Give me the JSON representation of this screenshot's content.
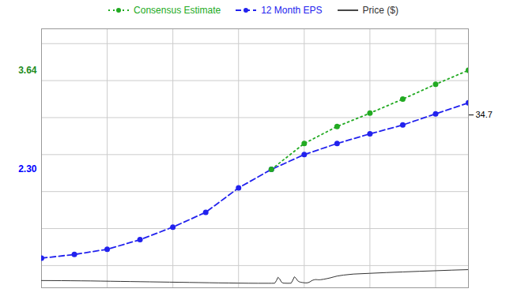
{
  "chart_data": {
    "type": "line",
    "legend": "top",
    "grid": true,
    "xlim": [
      0,
      13
    ],
    "ylim": [
      0.7,
      4.2
    ],
    "y2lim": [
      0.0,
      52.0
    ],
    "y2ticks": [
      34.7
    ],
    "series": [
      {
        "name": "Consensus Estimate",
        "color": "#22aa22",
        "line_style": "dotted",
        "marker": "circle",
        "x": [
          7,
          8,
          9,
          10,
          11,
          12,
          13
        ],
        "values": [
          2.3,
          2.65,
          2.88,
          3.06,
          3.25,
          3.45,
          3.64
        ]
      },
      {
        "name": "12 Month EPS",
        "color": "#2222ee",
        "line_style": "dashed",
        "marker": "circle",
        "x": [
          0,
          1,
          2,
          3,
          4,
          5,
          6,
          7,
          8,
          9,
          10,
          11,
          12,
          13
        ],
        "values": [
          1.1,
          1.15,
          1.22,
          1.35,
          1.52,
          1.72,
          2.05,
          2.3,
          2.5,
          2.65,
          2.78,
          2.9,
          3.05,
          3.2
        ]
      },
      {
        "name": "Price ($)",
        "color": "#333333",
        "line_style": "solid",
        "axis": "y2",
        "x": [
          0,
          0.3,
          0.6,
          0.9,
          1.2,
          1.5,
          1.8,
          2.1,
          2.4,
          2.7,
          3.0,
          3.3,
          3.6,
          3.9,
          4.2,
          4.5,
          4.8,
          5.1,
          5.4,
          5.7,
          6.0,
          6.3,
          6.6,
          6.9,
          7.0,
          7.1,
          7.15,
          7.2,
          7.25,
          7.3,
          7.35,
          7.4,
          7.45,
          7.5,
          7.55,
          7.6,
          7.65,
          7.7,
          7.75,
          7.8,
          7.85,
          7.9,
          7.95,
          8.0,
          8.05,
          8.1,
          8.15,
          8.2,
          8.25,
          8.3,
          8.35,
          8.4,
          8.45,
          8.5,
          8.6,
          8.7,
          8.8,
          8.9,
          9.0,
          9.2,
          9.5,
          10.0,
          10.5,
          11.0,
          11.5,
          12.0,
          12.5,
          13.0
        ],
        "values": [
          1.45,
          1.44,
          1.43,
          1.41,
          1.39,
          1.37,
          1.34,
          1.31,
          1.28,
          1.25,
          1.22,
          1.19,
          1.16,
          1.13,
          1.1,
          1.07,
          1.04,
          1.01,
          0.98,
          0.96,
          0.93,
          0.91,
          0.9,
          0.9,
          0.9,
          0.91,
          1.4,
          2.1,
          1.8,
          1.2,
          0.95,
          0.92,
          0.91,
          0.9,
          0.91,
          0.92,
          1.5,
          2.2,
          1.9,
          1.4,
          1.2,
          1.1,
          1.05,
          1.0,
          0.98,
          1.0,
          1.1,
          1.3,
          1.5,
          1.6,
          1.65,
          1.62,
          1.6,
          1.62,
          1.72,
          1.85,
          2.0,
          2.18,
          2.35,
          2.55,
          2.75,
          2.9,
          3.05,
          3.18,
          3.3,
          3.42,
          3.54,
          3.64
        ]
      }
    ],
    "annotations": [
      {
        "text": "3.64",
        "y": 3.64,
        "color": "#228B22"
      },
      {
        "text": "2.30",
        "y": 2.3,
        "color": "#0000ff"
      }
    ]
  }
}
